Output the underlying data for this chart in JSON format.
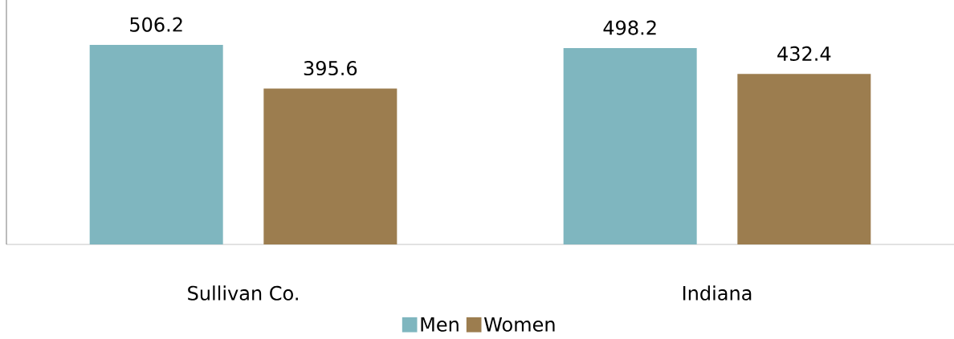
{
  "chart_data": {
    "type": "bar",
    "categories": [
      "Sullivan Co.",
      "Indiana"
    ],
    "series": [
      {
        "name": "Men",
        "color": "#7fb6bf",
        "values": [
          506.2,
          498.2
        ]
      },
      {
        "name": "Women",
        "color": "#9c7d4f",
        "values": [
          395.6,
          432.4
        ]
      }
    ],
    "ylim": [
      0,
      620
    ],
    "data_labels": true,
    "legend": "bottom"
  }
}
